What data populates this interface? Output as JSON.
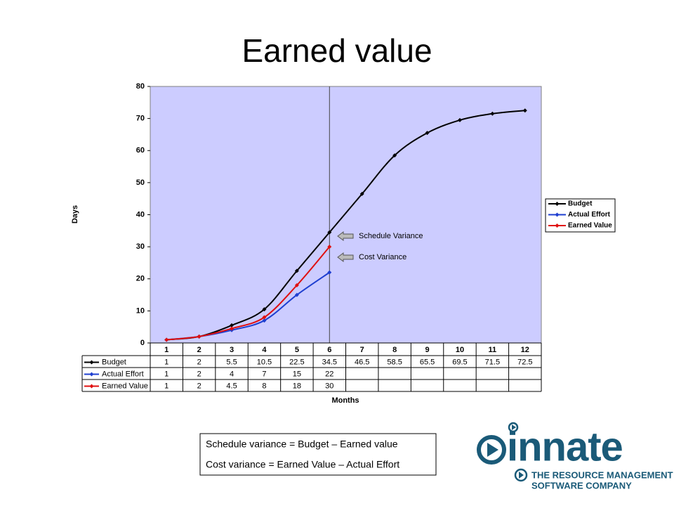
{
  "title": "Earned value",
  "chart_data": {
    "type": "line",
    "y_label": "Days",
    "x_label": "Months",
    "categories": [
      "1",
      "2",
      "3",
      "4",
      "5",
      "6",
      "7",
      "8",
      "9",
      "10",
      "11",
      "12"
    ],
    "series": [
      {
        "name": "Budget",
        "color": "#000000",
        "values": [
          1,
          2,
          5.5,
          10.5,
          22.5,
          34.5,
          46.5,
          58.5,
          65.5,
          69.5,
          71.5,
          72.5
        ]
      },
      {
        "name": "Actual Effort",
        "color": "#1f3fd0",
        "values": [
          1,
          2,
          4,
          7,
          15,
          22,
          null,
          null,
          null,
          null,
          null,
          null
        ]
      },
      {
        "name": "Earned Value",
        "color": "#e01010",
        "values": [
          1,
          2,
          4.5,
          8,
          18,
          30,
          null,
          null,
          null,
          null,
          null,
          null
        ]
      }
    ],
    "ylim": [
      0,
      80
    ],
    "yticks": [
      0,
      10,
      20,
      30,
      40,
      50,
      60,
      70,
      80
    ],
    "plot_color": "#ccccff",
    "legend": "right",
    "data_table": true,
    "vline_category": "6",
    "annotations": [
      "Schedule Variance",
      "Cost Variance"
    ]
  },
  "formula": [
    "Schedule variance = Budget – Earned value",
    "Cost variance = Earned Value – Actual Effort"
  ],
  "logo": {
    "name": "innate",
    "tagline": [
      "THE RESOURCE MANAGEMENT",
      "SOFTWARE COMPANY"
    ]
  }
}
